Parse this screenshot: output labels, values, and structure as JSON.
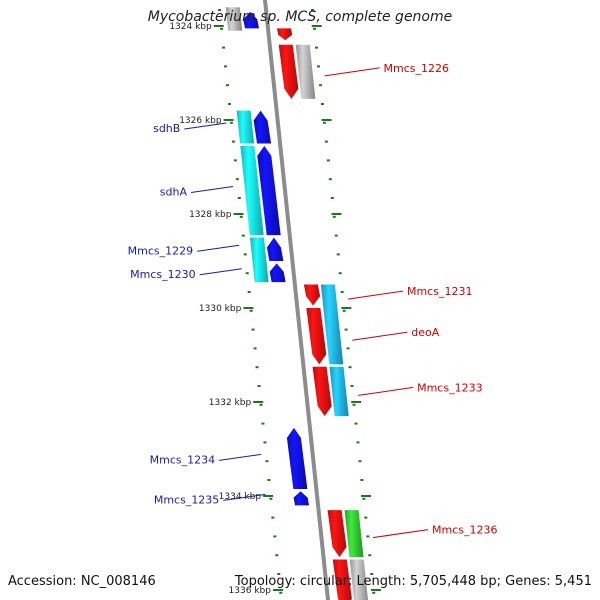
{
  "title": "Mycobacterium sp. MCS, complete genome",
  "footer": {
    "accession": "Accession: NC_008146",
    "summary": "Topology: circular; Length: 5,705,448 bp; Genes: 5,451"
  },
  "colors": {
    "backbone": "#8c8c8c",
    "tick": "#1a7a1a",
    "left_label": "#1a1aaa",
    "right_label": "#cc0000",
    "red_gene": "#ee1111",
    "blue_gene": "#1111dd",
    "cyan_gene": "#18e6e6",
    "skyblue_gene": "#22b8ee",
    "green_gene": "#33cc33",
    "gray_gene": "#b8b8b8"
  },
  "scale_labels": [
    {
      "kbp": 1324,
      "text": "1324 kbp"
    },
    {
      "kbp": 1326,
      "text": "1326 kbp"
    },
    {
      "kbp": 1328,
      "text": "1328 kbp"
    },
    {
      "kbp": 1330,
      "text": "1330 kbp"
    },
    {
      "kbp": 1332,
      "text": "1332 kbp"
    },
    {
      "kbp": 1334,
      "text": "1334 kbp"
    },
    {
      "kbp": 1336,
      "text": "1336 kbp"
    }
  ],
  "genes": [
    {
      "label": "",
      "strand": "-",
      "lane": 1,
      "color": "blue_gene",
      "start_kbp": 1323.7,
      "end_kbp": 1324.05
    },
    {
      "label": "",
      "strand": "-",
      "lane": 2,
      "color": "gray_gene",
      "start_kbp": 1323.6,
      "end_kbp": 1324.1
    },
    {
      "label": "",
      "strand": "+",
      "lane": 1,
      "color": "red_gene",
      "start_kbp": 1324.05,
      "end_kbp": 1324.3
    },
    {
      "label": "Mmcs_1226",
      "strand": "+",
      "lane": 1,
      "color": "red_gene",
      "start_kbp": 1324.4,
      "end_kbp": 1325.55
    },
    {
      "label": "",
      "strand": "+",
      "lane": 2,
      "color": "gray_gene",
      "start_kbp": 1324.4,
      "end_kbp": 1325.55
    },
    {
      "label": "sdhB",
      "strand": "-",
      "lane": 1,
      "color": "blue_gene",
      "start_kbp": 1325.8,
      "end_kbp": 1326.5
    },
    {
      "label": "",
      "strand": "-",
      "lane": 2,
      "color": "cyan_gene",
      "start_kbp": 1325.8,
      "end_kbp": 1326.5
    },
    {
      "label": "sdhA",
      "strand": "-",
      "lane": 1,
      "color": "blue_gene",
      "start_kbp": 1326.55,
      "end_kbp": 1328.45
    },
    {
      "label": "",
      "strand": "-",
      "lane": 2,
      "color": "cyan_gene",
      "start_kbp": 1326.55,
      "end_kbp": 1328.45
    },
    {
      "label": "Mmcs_1229",
      "strand": "-",
      "lane": 1,
      "color": "blue_gene",
      "start_kbp": 1328.5,
      "end_kbp": 1329.0
    },
    {
      "label": "",
      "strand": "-",
      "lane": 2,
      "color": "cyan_gene",
      "start_kbp": 1328.5,
      "end_kbp": 1329.45
    },
    {
      "label": "Mmcs_1230",
      "strand": "-",
      "lane": 1,
      "color": "blue_gene",
      "start_kbp": 1329.05,
      "end_kbp": 1329.45
    },
    {
      "label": "Mmcs_1231",
      "strand": "+",
      "lane": 1,
      "color": "red_gene",
      "start_kbp": 1329.5,
      "end_kbp": 1329.95
    },
    {
      "label": "",
      "strand": "+",
      "lane": 2,
      "color": "skyblue_gene",
      "start_kbp": 1329.5,
      "end_kbp": 1331.2
    },
    {
      "label": "deoA",
      "strand": "+",
      "lane": 1,
      "color": "red_gene",
      "start_kbp": 1330.0,
      "end_kbp": 1331.2
    },
    {
      "label": "Mmcs_1233",
      "strand": "+",
      "lane": 1,
      "color": "red_gene",
      "start_kbp": 1331.25,
      "end_kbp": 1332.3
    },
    {
      "label": "",
      "strand": "+",
      "lane": 2,
      "color": "skyblue_gene",
      "start_kbp": 1331.25,
      "end_kbp": 1332.3
    },
    {
      "label": "Mmcs_1234",
      "strand": "-",
      "lane": 1,
      "color": "blue_gene",
      "start_kbp": 1332.55,
      "end_kbp": 1333.85
    },
    {
      "label": "Mmcs_1235",
      "strand": "-",
      "lane": 1,
      "color": "blue_gene",
      "start_kbp": 1333.9,
      "end_kbp": 1334.2
    },
    {
      "label": "Mmcs_1236",
      "strand": "+",
      "lane": 1,
      "color": "red_gene",
      "start_kbp": 1334.3,
      "end_kbp": 1335.3
    },
    {
      "label": "",
      "strand": "+",
      "lane": 2,
      "color": "green_gene",
      "start_kbp": 1334.3,
      "end_kbp": 1335.3
    },
    {
      "label": "",
      "strand": "+",
      "lane": 1,
      "color": "red_gene",
      "start_kbp": 1335.35,
      "end_kbp": 1336.4
    },
    {
      "label": "",
      "strand": "+",
      "lane": 2,
      "color": "gray_gene",
      "start_kbp": 1335.35,
      "end_kbp": 1336.4
    }
  ]
}
